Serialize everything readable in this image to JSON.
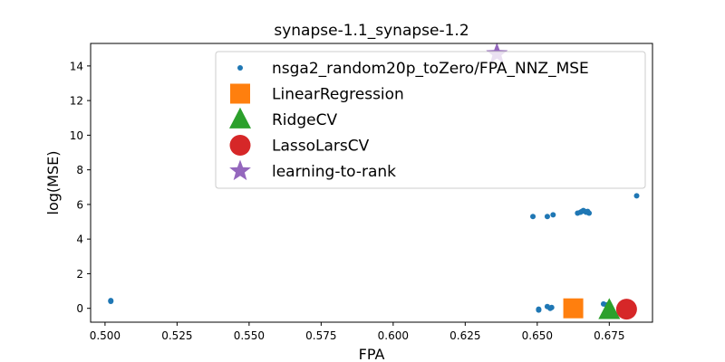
{
  "chart_data": {
    "type": "scatter",
    "title": "synapse-1.1_synapse-1.2",
    "xlabel": "FPA",
    "ylabel": "log(MSE)",
    "xlim": [
      0.495,
      0.69
    ],
    "ylim": [
      -0.8,
      15.3
    ],
    "xticks": [
      0.5,
      0.525,
      0.55,
      0.575,
      0.6,
      0.625,
      0.65,
      0.675
    ],
    "xtick_labels": [
      "0.500",
      "0.525",
      "0.550",
      "0.575",
      "0.600",
      "0.625",
      "0.650",
      "0.675"
    ],
    "yticks": [
      0,
      2,
      4,
      6,
      8,
      10,
      12,
      14
    ],
    "ytick_labels": [
      "0",
      "2",
      "4",
      "6",
      "8",
      "10",
      "12",
      "14"
    ],
    "grid": false,
    "legend_position": "top-right",
    "series": [
      {
        "name": "nsga2_random20p_toZero/FPA_NNZ_MSE",
        "marker": "dot",
        "color": "#1f77b4",
        "x": [
          0.502,
          0.502,
          0.6485,
          0.6535,
          0.6555,
          0.6505,
          0.6505,
          0.6535,
          0.6545,
          0.655,
          0.664,
          0.665,
          0.6655,
          0.666,
          0.6665,
          0.667,
          0.6675,
          0.668,
          0.673,
          0.674,
          0.6845
        ],
        "y": [
          0.45,
          0.4,
          5.3,
          5.3,
          5.4,
          -0.05,
          -0.1,
          0.1,
          0.0,
          0.05,
          5.5,
          5.55,
          5.6,
          5.65,
          5.6,
          5.55,
          5.6,
          5.5,
          0.25,
          0.2,
          6.5
        ]
      },
      {
        "name": "LinearRegression",
        "marker": "square",
        "color": "#ff7f0e",
        "x": [
          0.6625
        ],
        "y": [
          0.0
        ]
      },
      {
        "name": "RidgeCV",
        "marker": "triangle",
        "color": "#2ca02c",
        "x": [
          0.675
        ],
        "y": [
          -0.1
        ]
      },
      {
        "name": "LassoLarsCV",
        "marker": "circle",
        "color": "#d62728",
        "x": [
          0.681
        ],
        "y": [
          -0.05
        ]
      },
      {
        "name": "learning-to-rank",
        "marker": "star",
        "color": "#9467bd",
        "x": [
          0.636
        ],
        "y": [
          14.7
        ]
      }
    ]
  }
}
